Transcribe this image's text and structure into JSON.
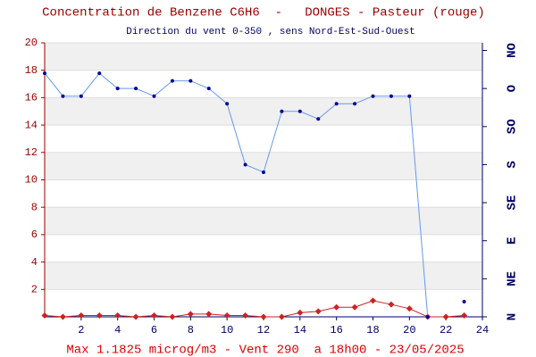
{
  "chart_data": {
    "type": "line",
    "title": "Concentration de Benzene C6H6  -   DONGES - Pasteur (rouge)",
    "subtitle": "Direction du vent 0-350 , sens Nord-Est-Sud-Ouest",
    "footer": "Max 1.1825 microg/m3 - Vent 290  a 18h00 - 23/05/2025",
    "x": [
      0,
      1,
      2,
      3,
      4,
      5,
      6,
      7,
      8,
      9,
      10,
      11,
      12,
      13,
      14,
      15,
      16,
      17,
      18,
      19,
      20,
      21,
      22,
      23
    ],
    "xlim": [
      0,
      24
    ],
    "xticks": [
      2,
      4,
      6,
      8,
      10,
      12,
      14,
      16,
      18,
      20,
      22,
      24
    ],
    "ylim": [
      0,
      20
    ],
    "yticks": [
      2,
      4,
      6,
      8,
      10,
      12,
      14,
      16,
      18,
      20
    ],
    "y2lim": [
      0,
      360
    ],
    "y2ticks": [
      {
        "value": 0,
        "label": "N"
      },
      {
        "value": 50,
        "label": "NE"
      },
      {
        "value": 100,
        "label": "E"
      },
      {
        "value": 150,
        "label": "SE"
      },
      {
        "value": 200,
        "label": "S"
      },
      {
        "value": 250,
        "label": "SO"
      },
      {
        "value": 300,
        "label": "O"
      },
      {
        "value": 350,
        "label": "NO"
      }
    ],
    "grid": true,
    "series": [
      {
        "color": "#cc2222",
        "marker": "diamond",
        "values": [
          0.1,
          0.0,
          0.1,
          0.1,
          0.1,
          0.0,
          0.1,
          0.0,
          0.2,
          0.2,
          0.1,
          0.1,
          0.0,
          0.0,
          0.3,
          0.4,
          0.7,
          0.7,
          1.1825,
          0.9,
          0.6,
          0.0,
          0.0,
          0.1
        ]
      },
      {
        "color": "#6699ee",
        "marker_color": "#000099",
        "marker": "dot",
        "axis": "y2",
        "values": [
          320,
          290,
          290,
          320,
          300,
          300,
          290,
          310,
          310,
          300,
          280,
          200,
          190,
          270,
          270,
          260,
          280,
          280,
          290,
          290,
          290,
          0,
          null,
          20
        ]
      }
    ]
  }
}
